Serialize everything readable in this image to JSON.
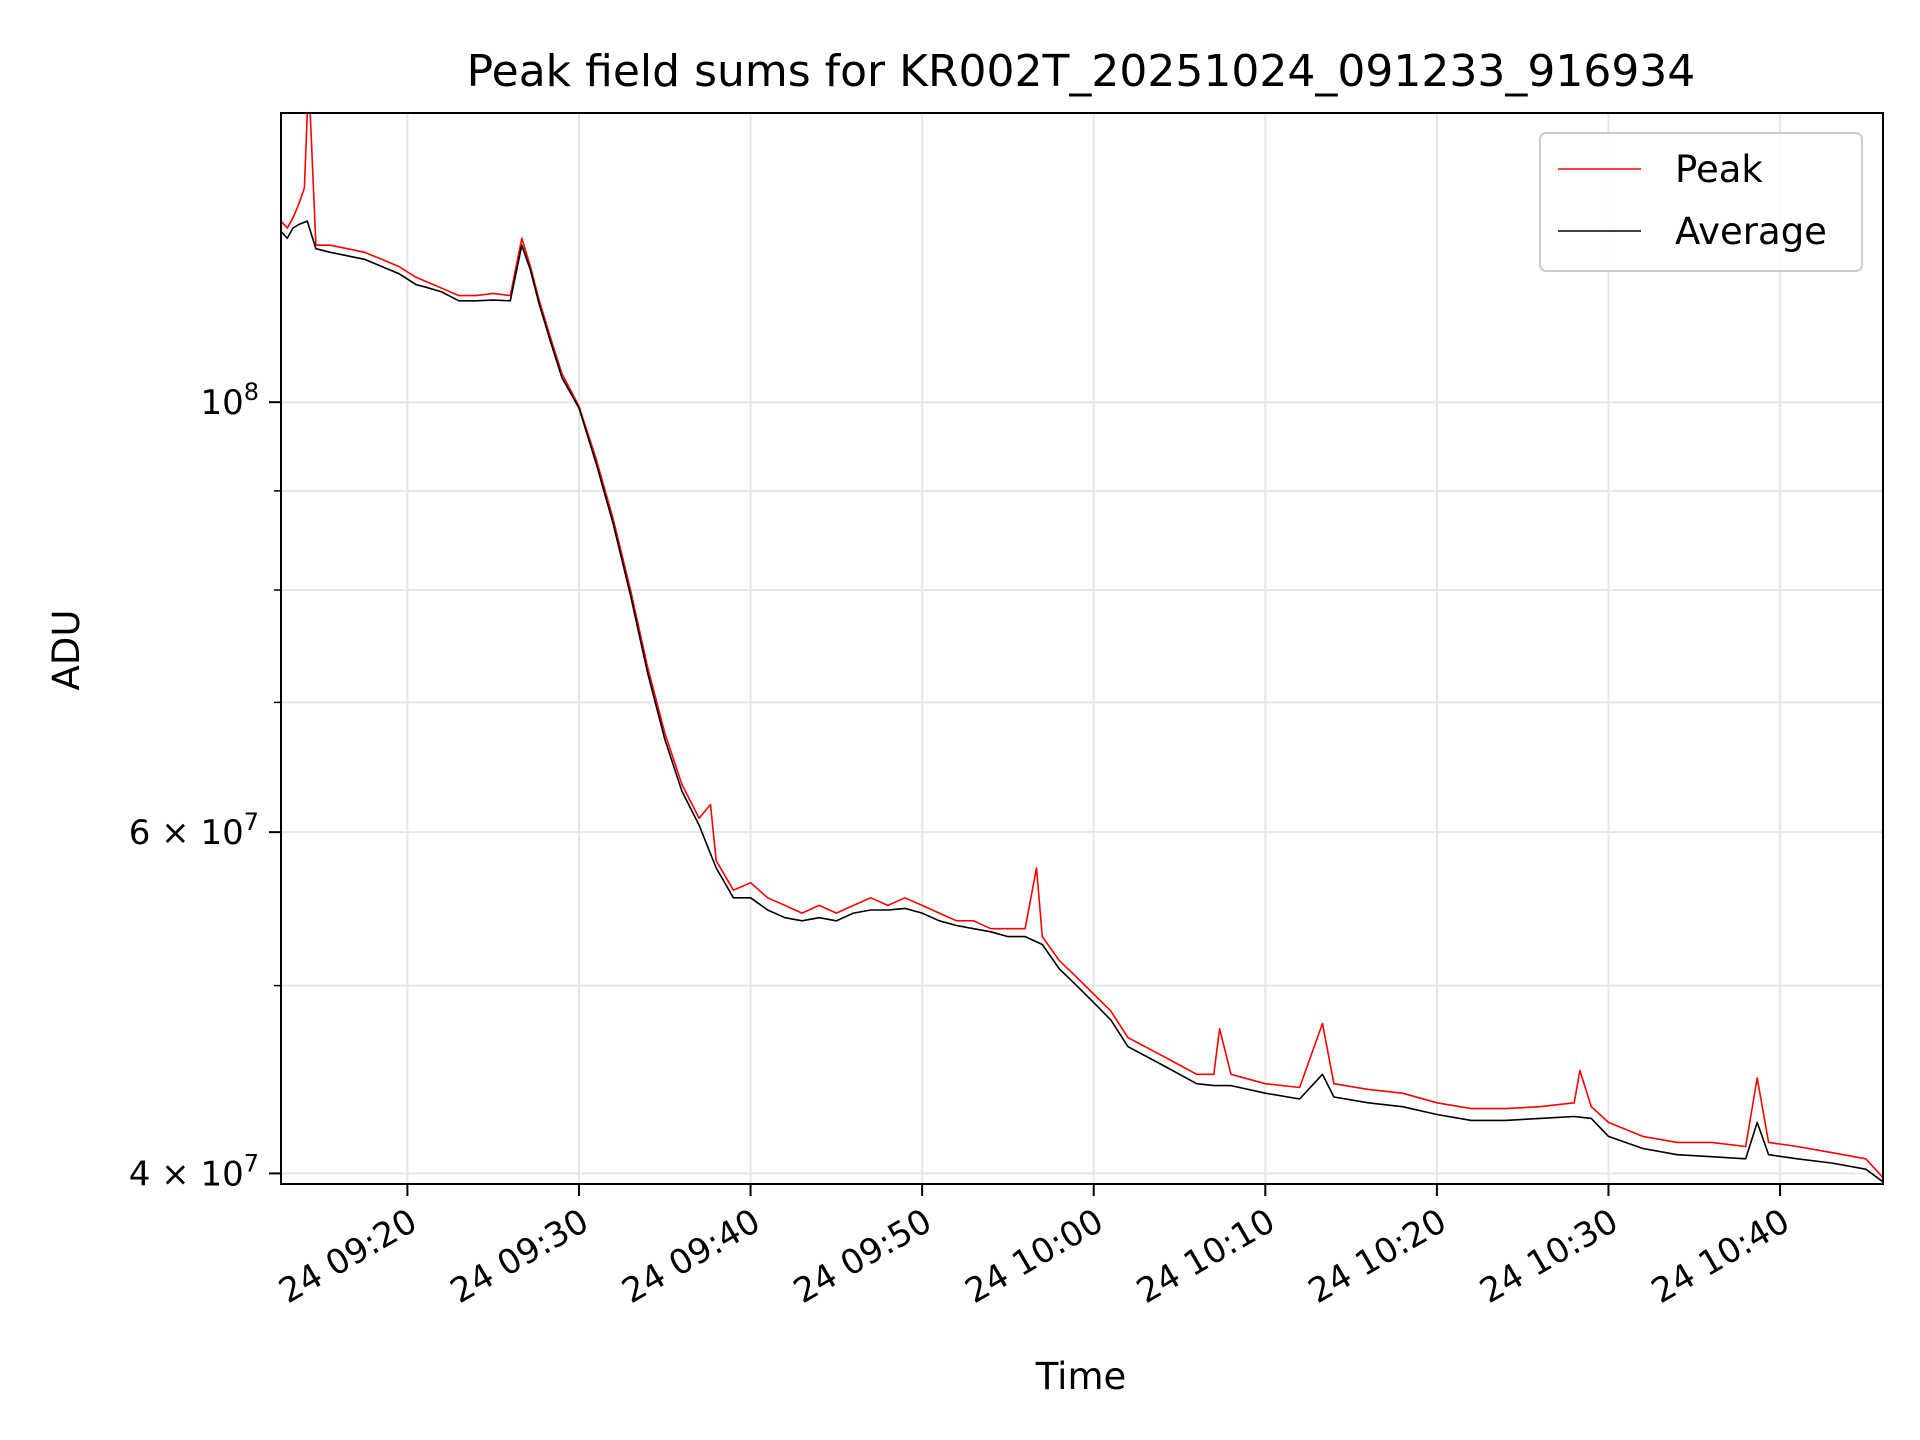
{
  "chart_data": {
    "type": "line",
    "title": "Peak field sums for KR002T_20251024_091233_916934",
    "xlabel": "Time",
    "ylabel": "ADU",
    "xlim": [
      "2025-10-24 09:12:38",
      "2025-10-24 10:46:00"
    ],
    "ylim": [
      39500000,
      141000000
    ],
    "yscale": "log",
    "grid": true,
    "legend_position": "top-right",
    "x_ticks": [
      {
        "time": "2025-10-24 09:20",
        "label": "24 09:20"
      },
      {
        "time": "2025-10-24 09:30",
        "label": "24 09:30"
      },
      {
        "time": "2025-10-24 09:40",
        "label": "24 09:40"
      },
      {
        "time": "2025-10-24 09:50",
        "label": "24 09:50"
      },
      {
        "time": "2025-10-24 10:00",
        "label": "24 10:00"
      },
      {
        "time": "2025-10-24 10:10",
        "label": "24 10:10"
      },
      {
        "time": "2025-10-24 10:20",
        "label": "24 10:20"
      },
      {
        "time": "2025-10-24 10:30",
        "label": "24 10:30"
      },
      {
        "time": "2025-10-24 10:40",
        "label": "24 10:40"
      }
    ],
    "y_major_ticks": [
      {
        "value": 40000000,
        "mantissa": "4",
        "exponent": "7"
      },
      {
        "value": 60000000,
        "mantissa": "6",
        "exponent": "7"
      },
      {
        "value": 100000000,
        "mantissa": "",
        "exponent": "8"
      }
    ],
    "y_minor_ticks": [
      50000000,
      70000000,
      80000000,
      90000000
    ],
    "series": [
      {
        "name": "Peak",
        "color": "#ff0000",
        "points": [
          [
            "2025-10-24 09:12:38",
            124000000
          ],
          [
            "2025-10-24 09:13:00",
            123000000
          ],
          [
            "2025-10-24 09:13:20",
            124500000
          ],
          [
            "2025-10-24 09:13:40",
            126500000
          ],
          [
            "2025-10-24 09:14:00",
            129000000
          ],
          [
            "2025-10-24 09:14:10",
            141000000
          ],
          [
            "2025-10-24 09:14:20",
            141000000
          ],
          [
            "2025-10-24 09:14:40",
            120500000
          ],
          [
            "2025-10-24 09:15:30",
            120500000
          ],
          [
            "2025-10-24 09:16:30",
            120000000
          ],
          [
            "2025-10-24 09:17:30",
            119500000
          ],
          [
            "2025-10-24 09:18:30",
            118500000
          ],
          [
            "2025-10-24 09:19:30",
            117500000
          ],
          [
            "2025-10-24 09:20:30",
            116000000
          ],
          [
            "2025-10-24 09:21:00",
            115500000
          ],
          [
            "2025-10-24 09:22:00",
            114500000
          ],
          [
            "2025-10-24 09:23:00",
            113500000
          ],
          [
            "2025-10-24 09:24:00",
            113500000
          ],
          [
            "2025-10-24 09:25:00",
            113800000
          ],
          [
            "2025-10-24 09:26:00",
            113500000
          ],
          [
            "2025-10-24 09:26:40",
            121500000
          ],
          [
            "2025-10-24 09:27:10",
            117500000
          ],
          [
            "2025-10-24 09:27:40",
            113000000
          ],
          [
            "2025-10-24 09:28:20",
            108000000
          ],
          [
            "2025-10-24 09:29:00",
            103500000
          ],
          [
            "2025-10-24 09:30:00",
            99500000
          ],
          [
            "2025-10-24 09:31:00",
            93500000
          ],
          [
            "2025-10-24 09:32:00",
            87000000
          ],
          [
            "2025-10-24 09:33:00",
            80000000
          ],
          [
            "2025-10-24 09:34:00",
            73000000
          ],
          [
            "2025-10-24 09:35:00",
            67500000
          ],
          [
            "2025-10-24 09:36:00",
            63500000
          ],
          [
            "2025-10-24 09:37:00",
            61000000
          ],
          [
            "2025-10-24 09:37:40",
            62000000
          ],
          [
            "2025-10-24 09:38:00",
            58000000
          ],
          [
            "2025-10-24 09:39:00",
            56000000
          ],
          [
            "2025-10-24 09:40:00",
            56500000
          ],
          [
            "2025-10-24 09:41:00",
            55500000
          ],
          [
            "2025-10-24 09:42:00",
            55000000
          ],
          [
            "2025-10-24 09:43:00",
            54500000
          ],
          [
            "2025-10-24 09:44:00",
            55000000
          ],
          [
            "2025-10-24 09:45:00",
            54500000
          ],
          [
            "2025-10-24 09:46:00",
            55000000
          ],
          [
            "2025-10-24 09:47:00",
            55500000
          ],
          [
            "2025-10-24 09:48:00",
            55000000
          ],
          [
            "2025-10-24 09:49:00",
            55500000
          ],
          [
            "2025-10-24 09:50:00",
            55000000
          ],
          [
            "2025-10-24 09:51:00",
            54500000
          ],
          [
            "2025-10-24 09:52:00",
            54000000
          ],
          [
            "2025-10-24 09:53:00",
            54000000
          ],
          [
            "2025-10-24 09:54:00",
            53500000
          ],
          [
            "2025-10-24 09:55:00",
            53500000
          ],
          [
            "2025-10-24 09:56:00",
            53500000
          ],
          [
            "2025-10-24 09:56:40",
            57500000
          ],
          [
            "2025-10-24 09:57:00",
            53000000
          ],
          [
            "2025-10-24 09:58:00",
            51500000
          ],
          [
            "2025-10-24 09:59:00",
            50500000
          ],
          [
            "2025-10-24 10:00:00",
            49500000
          ],
          [
            "2025-10-24 10:01:00",
            48500000
          ],
          [
            "2025-10-24 10:02:00",
            47000000
          ],
          [
            "2025-10-24 10:03:00",
            46500000
          ],
          [
            "2025-10-24 10:04:00",
            46000000
          ],
          [
            "2025-10-24 10:05:00",
            45500000
          ],
          [
            "2025-10-24 10:06:00",
            45000000
          ],
          [
            "2025-10-24 10:07:00",
            45000000
          ],
          [
            "2025-10-24 10:07:20",
            47500000
          ],
          [
            "2025-10-24 10:08:00",
            45000000
          ],
          [
            "2025-10-24 10:10:00",
            44500000
          ],
          [
            "2025-10-24 10:12:00",
            44300000
          ],
          [
            "2025-10-24 10:13:20",
            47800000
          ],
          [
            "2025-10-24 10:14:00",
            44500000
          ],
          [
            "2025-10-24 10:16:00",
            44200000
          ],
          [
            "2025-10-24 10:18:00",
            44000000
          ],
          [
            "2025-10-24 10:20:00",
            43500000
          ],
          [
            "2025-10-24 10:22:00",
            43200000
          ],
          [
            "2025-10-24 10:24:00",
            43200000
          ],
          [
            "2025-10-24 10:26:00",
            43300000
          ],
          [
            "2025-10-24 10:28:00",
            43500000
          ],
          [
            "2025-10-24 10:28:20",
            45200000
          ],
          [
            "2025-10-24 10:29:00",
            43300000
          ],
          [
            "2025-10-24 10:30:00",
            42500000
          ],
          [
            "2025-10-24 10:32:00",
            41800000
          ],
          [
            "2025-10-24 10:34:00",
            41500000
          ],
          [
            "2025-10-24 10:36:00",
            41500000
          ],
          [
            "2025-10-24 10:38:00",
            41300000
          ],
          [
            "2025-10-24 10:38:40",
            44800000
          ],
          [
            "2025-10-24 10:39:20",
            41500000
          ],
          [
            "2025-10-24 10:41:00",
            41300000
          ],
          [
            "2025-10-24 10:43:00",
            41000000
          ],
          [
            "2025-10-24 10:45:00",
            40700000
          ],
          [
            "2025-10-24 10:46:00",
            39800000
          ]
        ]
      },
      {
        "name": "Average",
        "color": "#000000",
        "points": [
          [
            "2025-10-24 09:12:38",
            122500000
          ],
          [
            "2025-10-24 09:13:00",
            121500000
          ],
          [
            "2025-10-24 09:13:20",
            123000000
          ],
          [
            "2025-10-24 09:13:40",
            123500000
          ],
          [
            "2025-10-24 09:14:10",
            124000000
          ],
          [
            "2025-10-24 09:14:40",
            120000000
          ],
          [
            "2025-10-24 09:15:30",
            119500000
          ],
          [
            "2025-10-24 09:16:30",
            119000000
          ],
          [
            "2025-10-24 09:17:30",
            118500000
          ],
          [
            "2025-10-24 09:18:30",
            117500000
          ],
          [
            "2025-10-24 09:19:30",
            116500000
          ],
          [
            "2025-10-24 09:20:30",
            115000000
          ],
          [
            "2025-10-24 09:21:00",
            114700000
          ],
          [
            "2025-10-24 09:22:00",
            114000000
          ],
          [
            "2025-10-24 09:23:00",
            112800000
          ],
          [
            "2025-10-24 09:24:00",
            112800000
          ],
          [
            "2025-10-24 09:25:00",
            112900000
          ],
          [
            "2025-10-24 09:26:00",
            112800000
          ],
          [
            "2025-10-24 09:26:40",
            120500000
          ],
          [
            "2025-10-24 09:27:10",
            117000000
          ],
          [
            "2025-10-24 09:27:40",
            112500000
          ],
          [
            "2025-10-24 09:28:20",
            107500000
          ],
          [
            "2025-10-24 09:29:00",
            103000000
          ],
          [
            "2025-10-24 09:30:00",
            99300000
          ],
          [
            "2025-10-24 09:31:00",
            93000000
          ],
          [
            "2025-10-24 09:32:00",
            86500000
          ],
          [
            "2025-10-24 09:33:00",
            79500000
          ],
          [
            "2025-10-24 09:34:00",
            72500000
          ],
          [
            "2025-10-24 09:35:00",
            67000000
          ],
          [
            "2025-10-24 09:36:00",
            63000000
          ],
          [
            "2025-10-24 09:37:00",
            60500000
          ],
          [
            "2025-10-24 09:38:00",
            57500000
          ],
          [
            "2025-10-24 09:39:00",
            55500000
          ],
          [
            "2025-10-24 09:40:00",
            55500000
          ],
          [
            "2025-10-24 09:41:00",
            54700000
          ],
          [
            "2025-10-24 09:42:00",
            54200000
          ],
          [
            "2025-10-24 09:43:00",
            54000000
          ],
          [
            "2025-10-24 09:44:00",
            54200000
          ],
          [
            "2025-10-24 09:45:00",
            54000000
          ],
          [
            "2025-10-24 09:46:00",
            54500000
          ],
          [
            "2025-10-24 09:47:00",
            54700000
          ],
          [
            "2025-10-24 09:48:00",
            54700000
          ],
          [
            "2025-10-24 09:49:00",
            54800000
          ],
          [
            "2025-10-24 09:50:00",
            54500000
          ],
          [
            "2025-10-24 09:51:00",
            54000000
          ],
          [
            "2025-10-24 09:52:00",
            53700000
          ],
          [
            "2025-10-24 09:53:00",
            53500000
          ],
          [
            "2025-10-24 09:54:00",
            53300000
          ],
          [
            "2025-10-24 09:55:00",
            53000000
          ],
          [
            "2025-10-24 09:56:00",
            53000000
          ],
          [
            "2025-10-24 09:57:00",
            52500000
          ],
          [
            "2025-10-24 09:58:00",
            51000000
          ],
          [
            "2025-10-24 09:59:00",
            50000000
          ],
          [
            "2025-10-24 10:00:00",
            49000000
          ],
          [
            "2025-10-24 10:01:00",
            48000000
          ],
          [
            "2025-10-24 10:02:00",
            46500000
          ],
          [
            "2025-10-24 10:03:00",
            46000000
          ],
          [
            "2025-10-24 10:04:00",
            45500000
          ],
          [
            "2025-10-24 10:05:00",
            45000000
          ],
          [
            "2025-10-24 10:06:00",
            44500000
          ],
          [
            "2025-10-24 10:07:00",
            44400000
          ],
          [
            "2025-10-24 10:08:00",
            44400000
          ],
          [
            "2025-10-24 10:10:00",
            44000000
          ],
          [
            "2025-10-24 10:12:00",
            43700000
          ],
          [
            "2025-10-24 10:13:20",
            45000000
          ],
          [
            "2025-10-24 10:14:00",
            43800000
          ],
          [
            "2025-10-24 10:16:00",
            43500000
          ],
          [
            "2025-10-24 10:18:00",
            43300000
          ],
          [
            "2025-10-24 10:20:00",
            42900000
          ],
          [
            "2025-10-24 10:22:00",
            42600000
          ],
          [
            "2025-10-24 10:24:00",
            42600000
          ],
          [
            "2025-10-24 10:26:00",
            42700000
          ],
          [
            "2025-10-24 10:28:00",
            42800000
          ],
          [
            "2025-10-24 10:29:00",
            42700000
          ],
          [
            "2025-10-24 10:30:00",
            41800000
          ],
          [
            "2025-10-24 10:32:00",
            41200000
          ],
          [
            "2025-10-24 10:34:00",
            40900000
          ],
          [
            "2025-10-24 10:36:00",
            40800000
          ],
          [
            "2025-10-24 10:38:00",
            40700000
          ],
          [
            "2025-10-24 10:38:40",
            42500000
          ],
          [
            "2025-10-24 10:39:20",
            40900000
          ],
          [
            "2025-10-24 10:41:00",
            40700000
          ],
          [
            "2025-10-24 10:43:00",
            40500000
          ],
          [
            "2025-10-24 10:45:00",
            40200000
          ],
          [
            "2025-10-24 10:46:00",
            39600000
          ]
        ]
      }
    ]
  }
}
